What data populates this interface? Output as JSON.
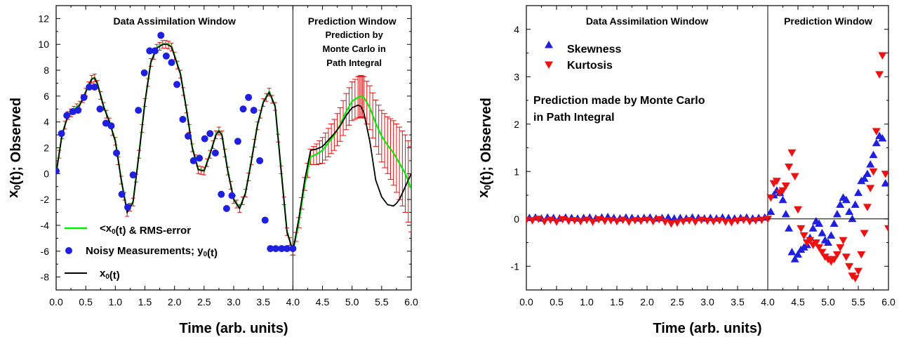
{
  "chart_data": [
    {
      "type": "line",
      "xlabel": "Time   (arb.  units)",
      "ylabel": "x₀(t); Observed",
      "xlim": [
        0.0,
        6.0
      ],
      "ylim": [
        -9,
        13
      ],
      "xticks": [
        "0.0",
        "0.5",
        "1.0",
        "1.5",
        "2.0",
        "2.5",
        "3.0",
        "3.5",
        "4.0",
        "4.5",
        "5.0",
        "5.5",
        "6.0"
      ],
      "yticks": [
        "-8",
        "-6",
        "-4",
        "-2",
        "0",
        "2",
        "4",
        "6",
        "8",
        "10",
        "12"
      ],
      "divider_x": 4.0,
      "window_labels": {
        "assimilation": "Data Assimilation Window",
        "prediction": "Prediction Window",
        "prediction_note": [
          "Prediction by",
          "Monte Carlo in",
          "Path Integral"
        ]
      },
      "legend": {
        "placement": "bottom-left",
        "entries": [
          {
            "label": "<x₀(t) & RMS-error",
            "color": "#00ee00",
            "marker": "line"
          },
          {
            "label": "Noisy Measurements; y₀(t)",
            "color": "#1f1fe0",
            "marker": "circle"
          },
          {
            "label": "x₀(t)",
            "color": "#000000",
            "marker": "line"
          }
        ]
      },
      "series": [
        {
          "name": "x₀(t)",
          "color": "#000000",
          "x": [
            0.0,
            0.1,
            0.2,
            0.3,
            0.4,
            0.5,
            0.6,
            0.65,
            0.7,
            0.8,
            0.9,
            1.0,
            1.05,
            1.1,
            1.2,
            1.3,
            1.4,
            1.5,
            1.6,
            1.7,
            1.8,
            1.88,
            1.95,
            2.0,
            2.1,
            2.2,
            2.3,
            2.4,
            2.5,
            2.6,
            2.7,
            2.75,
            2.8,
            2.9,
            3.0,
            3.1,
            3.2,
            3.3,
            3.4,
            3.5,
            3.6,
            3.7,
            3.8,
            3.9,
            4.0,
            4.1,
            4.2,
            4.3,
            4.4,
            4.5,
            4.6,
            4.7,
            4.8,
            4.9,
            5.0,
            5.1,
            5.15,
            5.2,
            5.3,
            5.4,
            5.5,
            5.6,
            5.7,
            5.75,
            5.8,
            5.9,
            6.0
          ],
          "y": [
            0.0,
            3.0,
            4.5,
            4.9,
            5.3,
            6.3,
            7.3,
            7.4,
            6.9,
            5.2,
            4.0,
            2.5,
            1.0,
            -0.5,
            -3.0,
            -2.2,
            1.5,
            5.5,
            8.6,
            9.7,
            10.0,
            10.0,
            9.8,
            9.1,
            7.7,
            5.0,
            2.0,
            0.3,
            0.2,
            1.5,
            3.0,
            3.3,
            3.0,
            0.2,
            -2.0,
            -2.7,
            -1.5,
            1.0,
            3.7,
            5.5,
            6.3,
            5.2,
            0.3,
            -4.5,
            -6.0,
            -3.5,
            -0.5,
            1.8,
            1.9,
            2.1,
            2.6,
            3.1,
            3.7,
            4.5,
            5.1,
            5.3,
            5.2,
            4.7,
            2.5,
            -0.5,
            -1.8,
            -2.4,
            -2.5,
            -2.3,
            -2.0,
            -1.0,
            0.0
          ]
        },
        {
          "name": "<x₀(t) & RMS-error",
          "color": "#00ee00",
          "x": [
            4.0,
            4.1,
            4.2,
            4.3,
            4.4,
            4.5,
            4.6,
            4.7,
            4.8,
            4.9,
            5.0,
            5.1,
            5.15,
            5.2,
            5.3,
            5.4,
            5.5,
            5.6,
            5.7,
            5.8,
            5.9,
            6.0
          ],
          "y": [
            -6.0,
            -3.8,
            -0.8,
            1.3,
            1.5,
            1.8,
            2.4,
            3.0,
            3.8,
            4.8,
            5.6,
            5.9,
            6.0,
            5.9,
            5.1,
            3.9,
            2.9,
            2.2,
            1.6,
            0.8,
            0.0,
            -1.2
          ],
          "err": [
            0.3,
            0.4,
            0.5,
            0.6,
            0.8,
            1.0,
            1.1,
            1.2,
            1.3,
            1.4,
            1.5,
            1.6,
            1.6,
            1.6,
            1.7,
            1.8,
            2.0,
            2.2,
            2.5,
            2.8,
            3.0,
            3.3
          ]
        },
        {
          "name": "Noisy Measurements; y₀(t)",
          "color": "#1f1fe0",
          "x": [
            0.0,
            0.09,
            0.18,
            0.28,
            0.37,
            0.47,
            0.56,
            0.65,
            0.74,
            0.84,
            0.93,
            1.02,
            1.11,
            1.21,
            1.3,
            1.39,
            1.49,
            1.58,
            1.67,
            1.77,
            1.86,
            1.95,
            2.04,
            2.14,
            2.23,
            2.32,
            2.42,
            2.51,
            2.6,
            2.69,
            2.79,
            2.88,
            2.97,
            3.07,
            3.16,
            3.25,
            3.34,
            3.44,
            3.53,
            3.62,
            3.71,
            3.81,
            3.9,
            4.0
          ],
          "y": [
            0.2,
            3.1,
            4.5,
            4.8,
            4.9,
            5.9,
            6.7,
            6.7,
            5.0,
            3.9,
            3.7,
            1.6,
            -1.6,
            -2.6,
            -0.1,
            4.9,
            7.8,
            9.5,
            9.5,
            10.7,
            9.1,
            8.6,
            6.9,
            4.2,
            2.9,
            1.0,
            1.2,
            2.7,
            3.1,
            1.6,
            -1.6,
            -2.7,
            -1.7,
            2.5,
            5.0,
            5.9,
            4.9,
            1.0,
            -3.6,
            -5.8,
            -5.8,
            -5.8,
            -5.8,
            -5.8
          ]
        }
      ]
    },
    {
      "type": "scatter",
      "xlabel": "Time   (arb.  units)",
      "ylabel": "x₀(t); Observed",
      "xlim": [
        0.0,
        6.0
      ],
      "ylim": [
        -1.5,
        4.5
      ],
      "xticks": [
        "0.0",
        "0.5",
        "1.0",
        "1.5",
        "2.0",
        "2.5",
        "3.0",
        "3.5",
        "4.0",
        "4.5",
        "5.0",
        "5.5",
        "6.0"
      ],
      "yticks": [
        "-1",
        "0",
        "1",
        "2",
        "3",
        "4"
      ],
      "divider_x": 4.0,
      "window_labels": {
        "assimilation": "Data Assimilation Window",
        "prediction": "Prediction Window"
      },
      "annotation": [
        "Prediction made by Monte Carlo",
        "in Path Integral"
      ],
      "legend": {
        "placement": "top-left",
        "entries": [
          {
            "label": "Skewness",
            "color": "#1f1fe0",
            "marker": "triangle-up"
          },
          {
            "label": "Kurtosis",
            "color": "#ee1111",
            "marker": "triangle-down"
          }
        ]
      },
      "series": [
        {
          "name": "Skewness",
          "color": "#1f1fe0",
          "x": [
            0.05,
            0.15,
            0.25,
            0.35,
            0.45,
            0.55,
            0.65,
            0.75,
            0.85,
            0.95,
            1.05,
            1.15,
            1.25,
            1.35,
            1.45,
            1.55,
            1.65,
            1.75,
            1.85,
            1.95,
            2.05,
            2.15,
            2.25,
            2.35,
            2.45,
            2.55,
            2.65,
            2.75,
            2.85,
            2.95,
            3.05,
            3.15,
            3.25,
            3.35,
            3.45,
            3.55,
            3.65,
            3.75,
            3.85,
            3.95,
            4.05,
            4.1,
            4.15,
            4.2,
            4.25,
            4.3,
            4.35,
            4.4,
            4.45,
            4.5,
            4.55,
            4.6,
            4.65,
            4.7,
            4.75,
            4.8,
            4.85,
            4.9,
            4.95,
            5.0,
            5.05,
            5.1,
            5.15,
            5.2,
            5.25,
            5.3,
            5.35,
            5.4,
            5.45,
            5.5,
            5.55,
            5.6,
            5.65,
            5.7,
            5.75,
            5.8,
            5.85,
            5.9,
            5.95
          ],
          "y": [
            0.02,
            0.03,
            0.01,
            0.03,
            0.02,
            0.01,
            0.03,
            0.02,
            0.01,
            0.02,
            0.03,
            0.01,
            0.03,
            0.04,
            0.02,
            0.01,
            0.03,
            0.02,
            0.01,
            0.02,
            0.03,
            0.01,
            0.02,
            0.03,
            0.01,
            0.02,
            0.01,
            0.03,
            0.02,
            0.01,
            0.02,
            0.01,
            0.03,
            0.02,
            0.01,
            0.02,
            0.03,
            0.01,
            0.02,
            0.03,
            0.15,
            0.5,
            0.6,
            0.55,
            0.4,
            0.1,
            -0.2,
            -0.7,
            -0.85,
            -0.75,
            -0.65,
            -0.6,
            -0.55,
            -0.4,
            -0.2,
            -0.05,
            -0.1,
            -0.3,
            -0.45,
            -0.5,
            -0.35,
            -0.1,
            0.1,
            0.3,
            0.45,
            0.4,
            0.15,
            0.0,
            0.3,
            0.55,
            0.8,
            0.85,
            0.95,
            1.15,
            1.35,
            1.6,
            1.75,
            1.7,
            0.75
          ]
        },
        {
          "name": "Kurtosis",
          "color": "#ee1111",
          "x": [
            0.0,
            0.1,
            0.2,
            0.3,
            0.4,
            0.5,
            0.6,
            0.7,
            0.8,
            0.9,
            1.0,
            1.1,
            1.2,
            1.3,
            1.4,
            1.5,
            1.6,
            1.7,
            1.8,
            1.9,
            2.0,
            2.1,
            2.2,
            2.3,
            2.4,
            2.5,
            2.6,
            2.7,
            2.8,
            2.9,
            3.0,
            3.1,
            3.2,
            3.3,
            3.4,
            3.5,
            3.6,
            3.7,
            3.8,
            3.9,
            4.0,
            4.05,
            4.1,
            4.15,
            4.2,
            4.25,
            4.3,
            4.35,
            4.4,
            4.45,
            4.5,
            4.55,
            4.6,
            4.65,
            4.7,
            4.75,
            4.8,
            4.85,
            4.9,
            4.95,
            5.0,
            5.05,
            5.1,
            5.15,
            5.2,
            5.25,
            5.3,
            5.35,
            5.4,
            5.45,
            5.5,
            5.55,
            5.6,
            5.65,
            5.7,
            5.75,
            5.8,
            5.85,
            5.9,
            5.95,
            6.0
          ],
          "y": [
            -0.02,
            -0.03,
            0.0,
            -0.05,
            -0.02,
            -0.06,
            -0.01,
            -0.04,
            -0.03,
            -0.05,
            -0.02,
            -0.06,
            -0.01,
            -0.04,
            -0.03,
            -0.05,
            -0.02,
            -0.06,
            -0.03,
            -0.04,
            -0.02,
            -0.05,
            -0.01,
            -0.06,
            -0.1,
            -0.08,
            -0.05,
            -0.03,
            -0.06,
            -0.02,
            -0.04,
            -0.05,
            -0.03,
            -0.06,
            -0.07,
            -0.04,
            -0.02,
            -0.05,
            -0.03,
            -0.02,
            0.0,
            0.45,
            0.75,
            0.8,
            0.55,
            0.6,
            0.7,
            1.1,
            1.4,
            0.9,
            0.2,
            -0.2,
            -0.35,
            -0.5,
            -0.45,
            -0.55,
            -0.5,
            -0.6,
            -0.7,
            -0.8,
            -0.85,
            -0.9,
            -0.85,
            -0.75,
            -0.6,
            -0.45,
            -0.8,
            -1.0,
            -1.2,
            -1.25,
            -1.1,
            -0.75,
            -0.3,
            0.25,
            0.65,
            1.0,
            1.85,
            3.05,
            3.45,
            0.95,
            -0.2
          ]
        }
      ]
    }
  ]
}
